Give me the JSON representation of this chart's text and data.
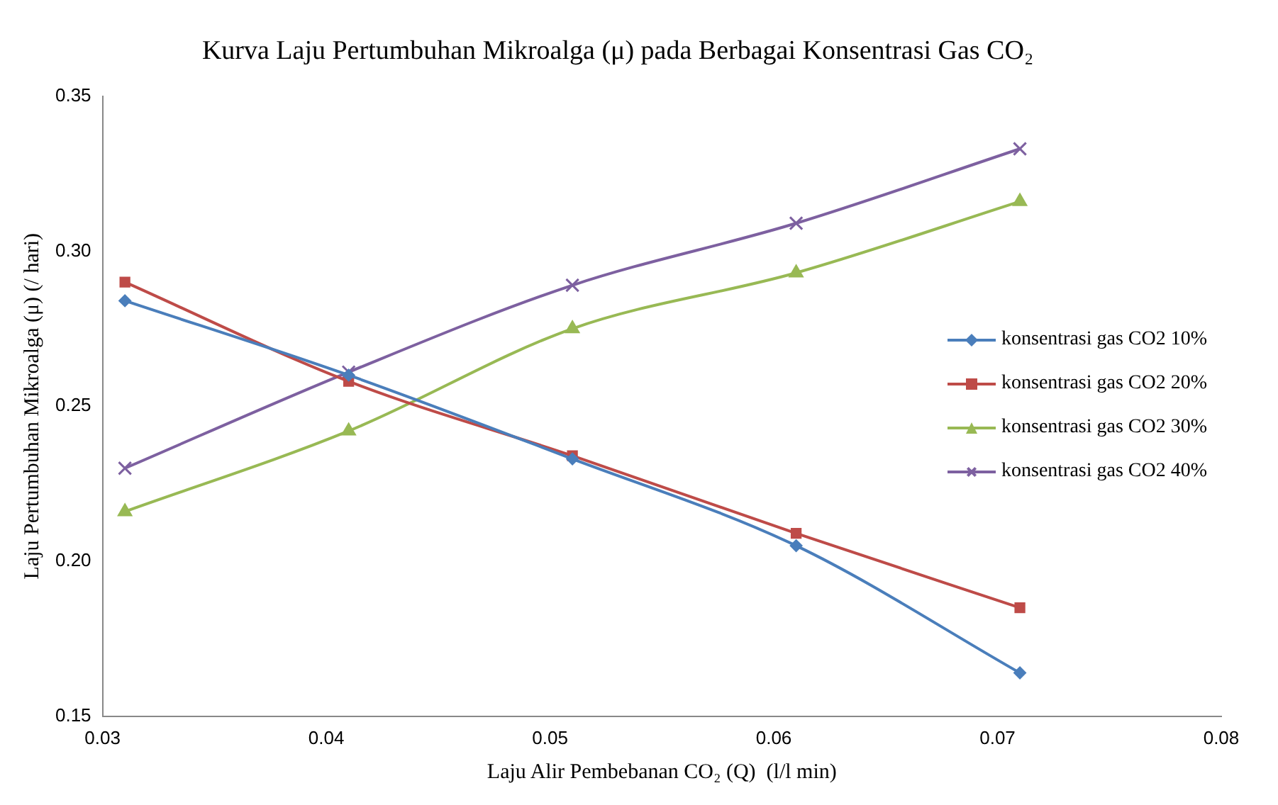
{
  "chart_data": {
    "type": "line",
    "title": "Kurva Laju Pertumbuhan Mikroalga (μ) pada Berbagai Konsentrasi Gas CO₂",
    "xlabel": "Laju Alir Pembebanan CO₂ (Q)  (l/l min)",
    "ylabel": "Laju Pertumbuhan Mikroalga (μ) (/ hari)",
    "x": [
      0.031,
      0.041,
      0.051,
      0.061,
      0.071
    ],
    "series": [
      {
        "name": "konsentrasi gas CO2 10%",
        "color": "#4a7ebb",
        "marker": "diamond",
        "values": [
          0.284,
          0.26,
          0.233,
          0.205,
          0.164
        ]
      },
      {
        "name": "konsentrasi gas CO2 20%",
        "color": "#be4b48",
        "marker": "square",
        "values": [
          0.29,
          0.258,
          0.234,
          0.209,
          0.185
        ]
      },
      {
        "name": "konsentrasi gas CO2 30%",
        "color": "#98b954",
        "marker": "triangle",
        "values": [
          0.216,
          0.242,
          0.275,
          0.293,
          0.316
        ]
      },
      {
        "name": "konsentrasi gas CO2 40%",
        "color": "#7d60a0",
        "marker": "cross",
        "values": [
          0.23,
          0.261,
          0.289,
          0.309,
          0.333
        ]
      }
    ],
    "xlim": [
      0.03,
      0.08
    ],
    "xticks": [
      0.03,
      0.04,
      0.05,
      0.06,
      0.07,
      0.08
    ],
    "ylim": [
      0.15,
      0.35
    ],
    "yticks": [
      0.15,
      {
        "value": 0.2,
        "label": "0.20"
      },
      0.25,
      {
        "value": 0.3,
        "label": "0.30"
      },
      0.35
    ],
    "grid": false,
    "legend": "right",
    "line_style": "solid"
  }
}
